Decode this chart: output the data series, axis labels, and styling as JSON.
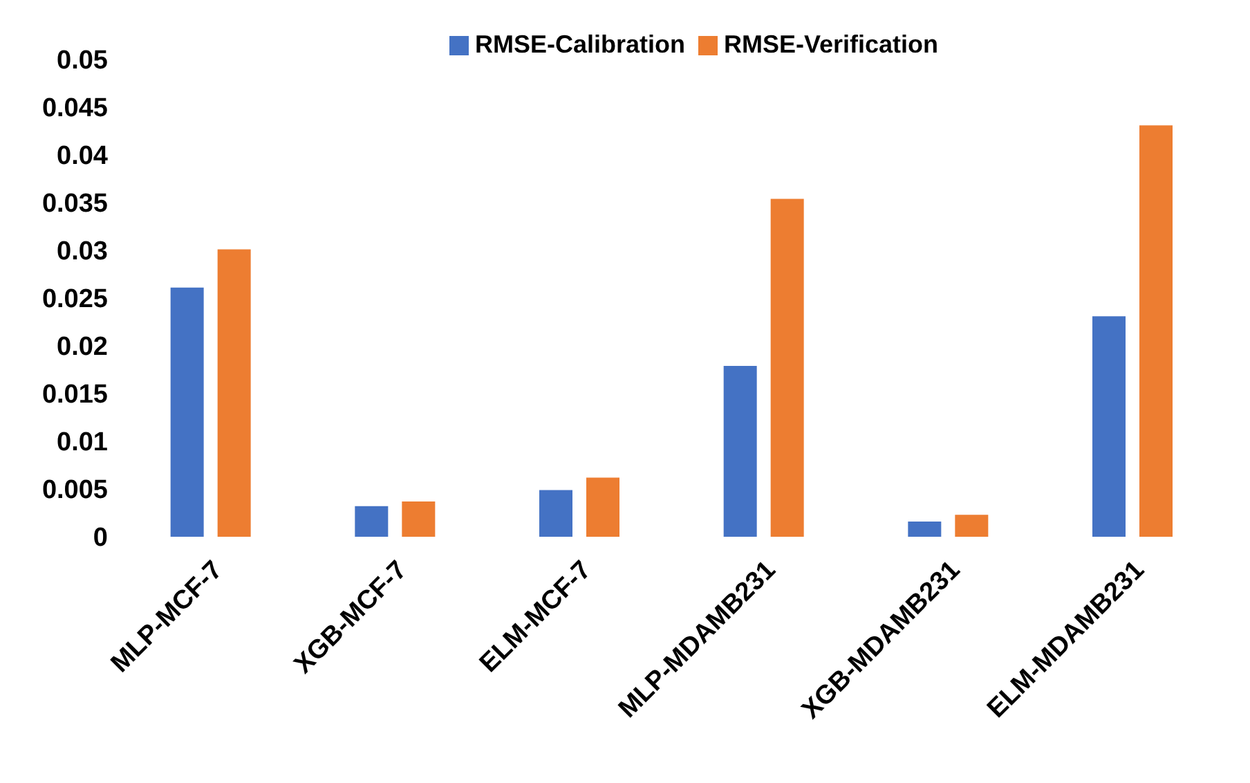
{
  "chart_data": {
    "type": "bar",
    "categories": [
      "MLP-MCF-7",
      "XGB-MCF-7",
      "ELM-MCF-7",
      "MLP-MDAMB231",
      "XGB-MDAMB231",
      "ELM-MDAMB231"
    ],
    "series": [
      {
        "name": "RMSE-Calibration",
        "color": "#4472c4",
        "values": [
          0.0261,
          0.0032,
          0.0049,
          0.0179,
          0.0016,
          0.0231
        ]
      },
      {
        "name": "RMSE-Verification",
        "color": "#ed7d31",
        "values": [
          0.0301,
          0.0037,
          0.0062,
          0.0354,
          0.0023,
          0.0431
        ]
      }
    ],
    "ylim": [
      0,
      0.05
    ],
    "yticks": [
      0,
      0.005,
      0.01,
      0.015,
      0.02,
      0.025,
      0.03,
      0.035,
      0.04,
      0.045,
      0.05
    ],
    "grid": false,
    "legend": "top"
  }
}
